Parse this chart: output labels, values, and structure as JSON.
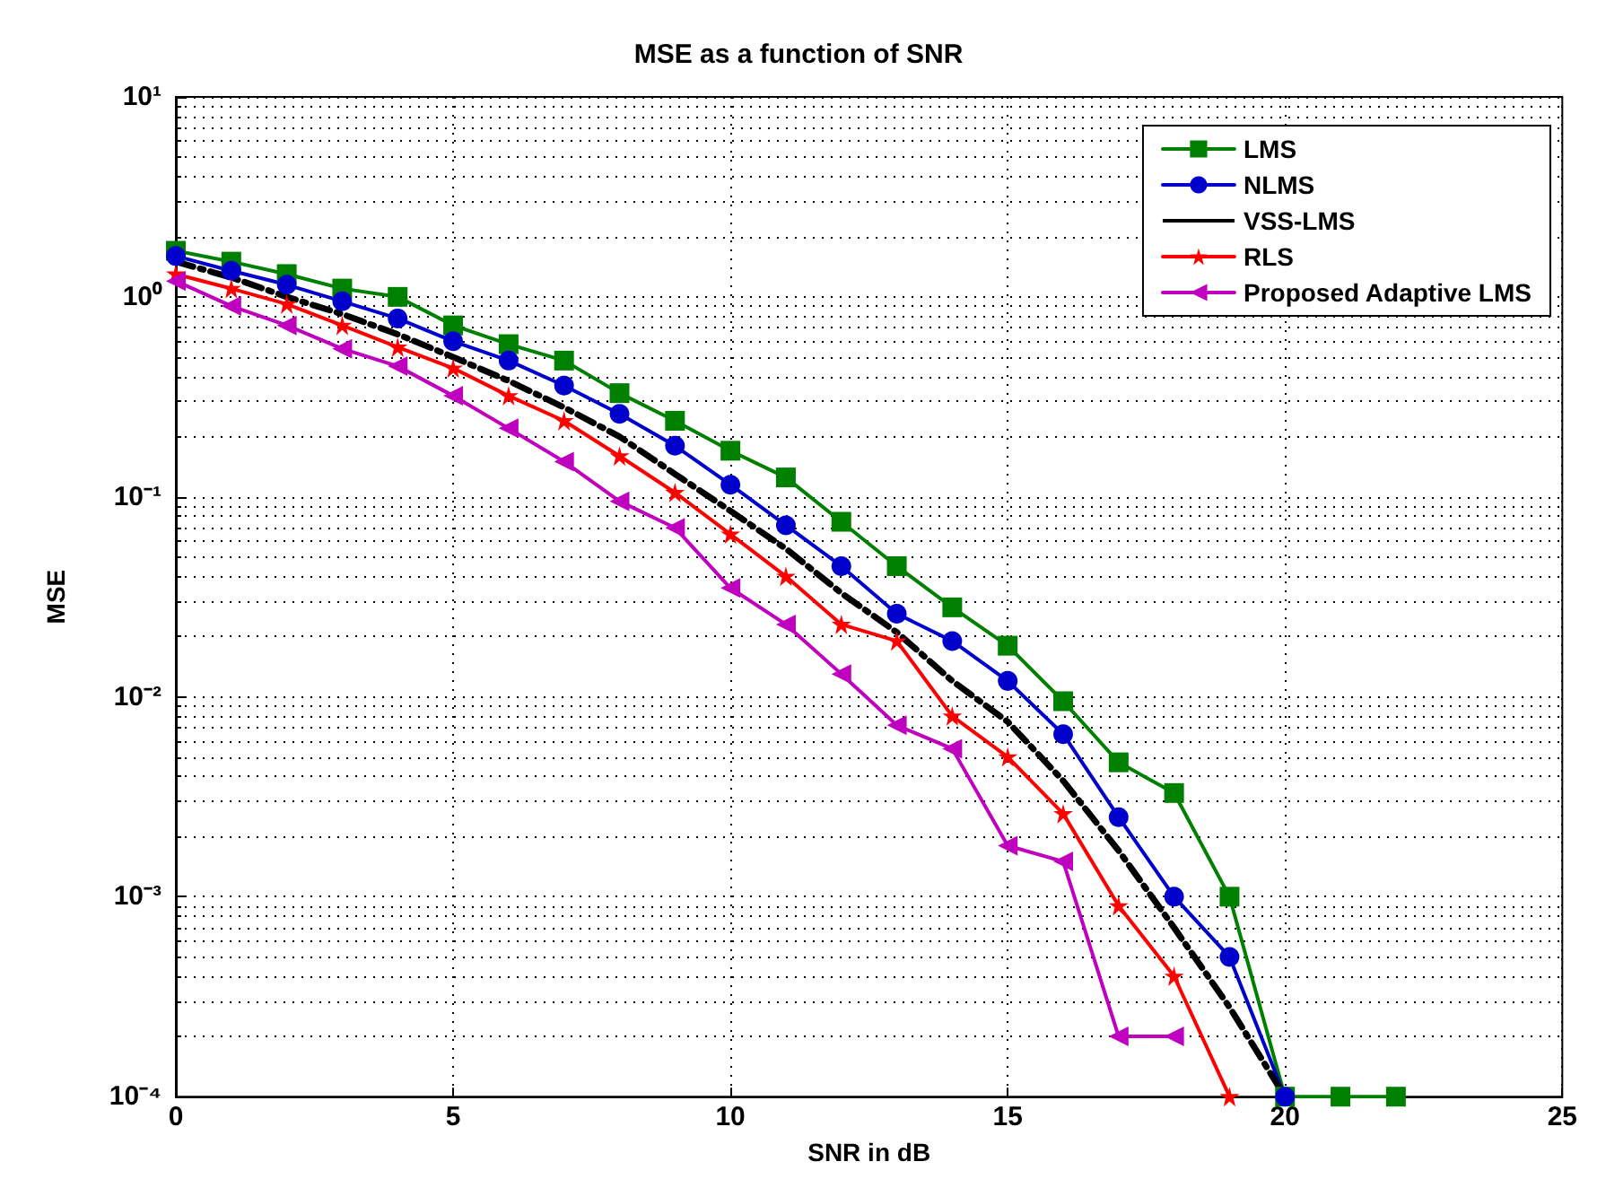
{
  "chart_data": {
    "type": "line",
    "title": "MSE as a function of SNR",
    "xlabel": "SNR in dB",
    "ylabel": "MSE",
    "log": "y",
    "grid": true,
    "legend": "top right",
    "xlim": [
      0,
      25
    ],
    "xticks": [
      0,
      5,
      10,
      15,
      20,
      25
    ],
    "ylim": [
      0.0001,
      10
    ],
    "yticks": [
      {
        "value": 0.0001,
        "label": "10⁻⁴"
      },
      {
        "value": 0.001,
        "label": "10⁻³"
      },
      {
        "value": 0.01,
        "label": "10⁻²"
      },
      {
        "value": 0.1,
        "label": "10⁻¹"
      },
      {
        "value": 1,
        "label": "10⁰"
      },
      {
        "value": 10,
        "label": "10¹"
      }
    ],
    "series": [
      {
        "name": "LMS",
        "color": "#008000",
        "marker": "square",
        "line_style": "solid",
        "x": [
          0,
          1,
          2,
          3,
          4,
          5,
          6,
          7,
          8,
          9,
          10,
          11,
          12,
          13,
          14,
          15,
          16,
          17,
          18,
          19,
          20,
          21,
          22
        ],
        "values": [
          1.7,
          1.5,
          1.3,
          1.1,
          1.0,
          0.72,
          0.58,
          0.48,
          0.33,
          0.24,
          0.17,
          0.125,
          0.075,
          0.045,
          0.028,
          0.018,
          0.0095,
          0.0047,
          0.0033,
          0.001,
          0.0001,
          0.0001,
          0.0001
        ]
      },
      {
        "name": "NLMS",
        "color": "#0000cc",
        "marker": "circle",
        "line_style": "solid",
        "x": [
          0,
          1,
          2,
          3,
          4,
          5,
          6,
          7,
          8,
          9,
          10,
          11,
          12,
          13,
          14,
          15,
          16,
          17,
          18,
          19,
          20
        ],
        "values": [
          1.6,
          1.35,
          1.15,
          0.95,
          0.78,
          0.6,
          0.48,
          0.36,
          0.26,
          0.18,
          0.115,
          0.072,
          0.045,
          0.026,
          0.019,
          0.012,
          0.0065,
          0.0025,
          0.001,
          0.0005,
          0.0001
        ]
      },
      {
        "name": "VSS-LMS",
        "color": "#000000",
        "marker": "none",
        "line_style": "dashed",
        "x": [
          0,
          1,
          2,
          3,
          4,
          5,
          6,
          7,
          8,
          9,
          10,
          11,
          12,
          13,
          14,
          15,
          16,
          17,
          18,
          19,
          20
        ],
        "values": [
          1.5,
          1.25,
          1.0,
          0.82,
          0.65,
          0.5,
          0.38,
          0.28,
          0.2,
          0.13,
          0.085,
          0.055,
          0.033,
          0.021,
          0.012,
          0.0075,
          0.0038,
          0.0017,
          0.0007,
          0.00028,
          0.0001
        ]
      },
      {
        "name": "RLS",
        "color": "#ff0000",
        "marker": "star",
        "line_style": "solid",
        "x": [
          0,
          1,
          2,
          3,
          4,
          5,
          6,
          7,
          8,
          9,
          10,
          11,
          12,
          13,
          14,
          15,
          16,
          17,
          18,
          19
        ],
        "values": [
          1.3,
          1.1,
          0.92,
          0.72,
          0.56,
          0.44,
          0.32,
          0.24,
          0.16,
          0.105,
          0.065,
          0.04,
          0.023,
          0.019,
          0.008,
          0.005,
          0.0026,
          0.0009,
          0.0004,
          0.0001
        ]
      },
      {
        "name": "Proposed Adaptive LMS",
        "color": "#bf00bf",
        "marker": "triangle",
        "line_style": "solid",
        "x": [
          0,
          1,
          2,
          3,
          4,
          5,
          6,
          7,
          8,
          9,
          10,
          11,
          12,
          13,
          14,
          15,
          16,
          17,
          18
        ],
        "values": [
          1.2,
          0.9,
          0.72,
          0.55,
          0.45,
          0.32,
          0.22,
          0.15,
          0.095,
          0.07,
          0.035,
          0.023,
          0.013,
          0.0072,
          0.0055,
          0.0018,
          0.0015,
          0.0002,
          0.0002
        ]
      }
    ]
  }
}
